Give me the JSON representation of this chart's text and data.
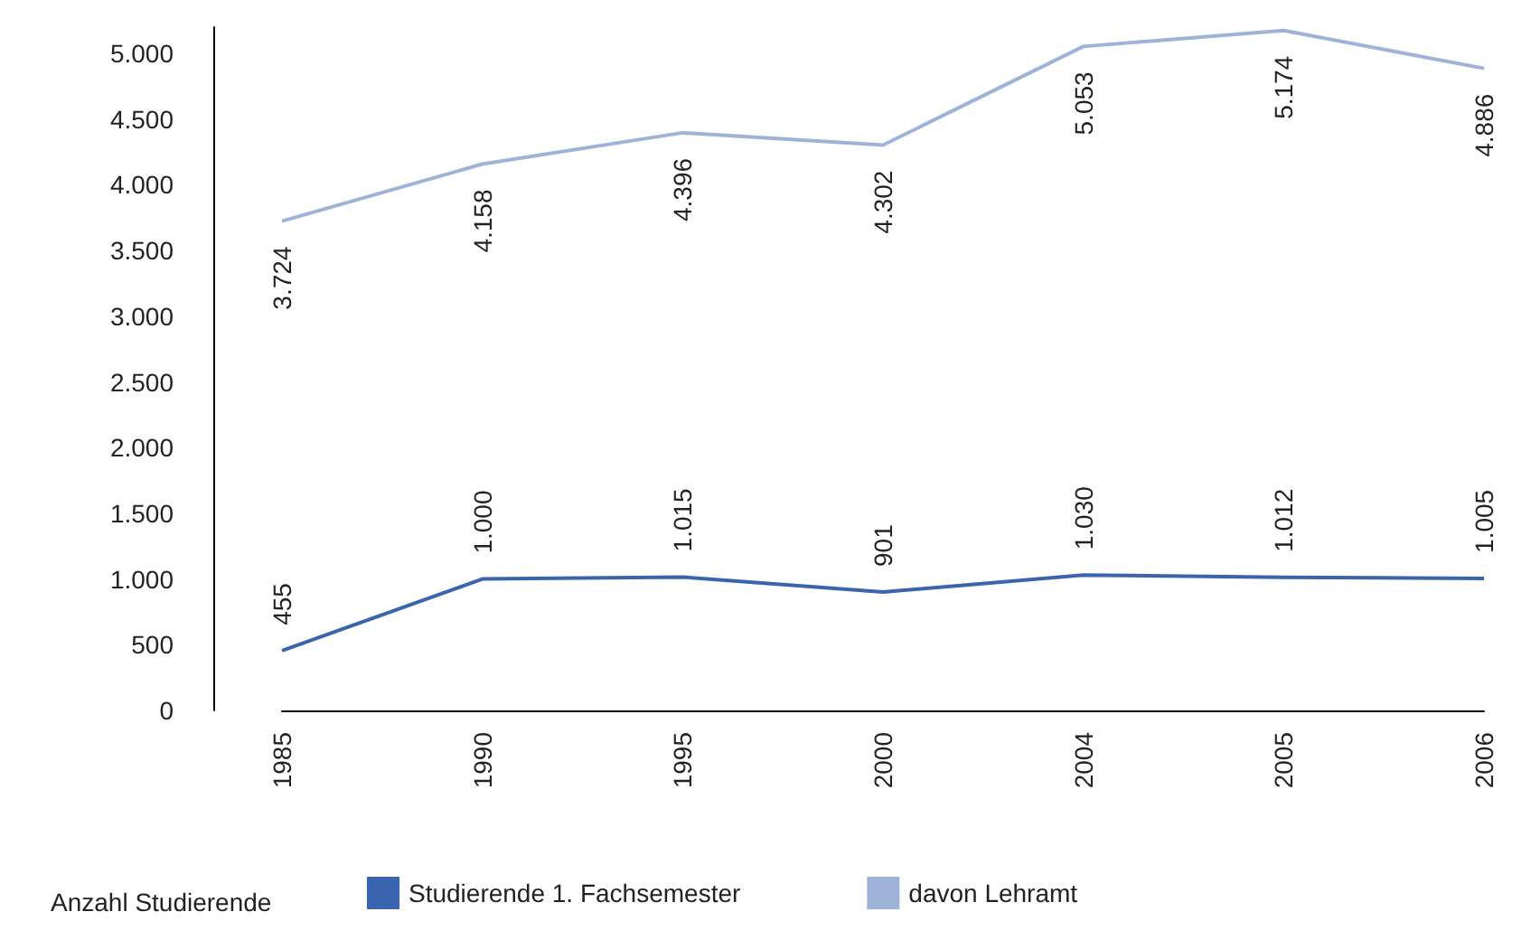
{
  "chart_data": {
    "type": "line",
    "legend_title": "Anzahl Studierende",
    "categories": [
      "1985",
      "1990",
      "1995",
      "2000",
      "2004",
      "2005",
      "2006"
    ],
    "series": [
      {
        "name": "Studierende 1. Fachsemester",
        "color": "#3a64ad",
        "values": [
          455,
          1000,
          1015,
          901,
          1030,
          1012,
          1005
        ],
        "value_labels": [
          "455",
          "1.000",
          "1.015",
          "901",
          "1.030",
          "1.012",
          "1.005"
        ]
      },
      {
        "name": "davon Lehramt",
        "color": "#9fb3d9",
        "values": [
          3724,
          4158,
          4396,
          4302,
          5053,
          5174,
          4886
        ],
        "value_labels": [
          "3.724",
          "4.158",
          "4.396",
          "4.302",
          "5.053",
          "5.174",
          "4.886"
        ]
      }
    ],
    "ylim": [
      0,
      5200
    ],
    "yticks": [
      {
        "value": 0,
        "label": "0"
      },
      {
        "value": 500,
        "label": "500"
      },
      {
        "value": 1000,
        "label": "1.000"
      },
      {
        "value": 1500,
        "label": "1.500"
      },
      {
        "value": 2000,
        "label": "2.000"
      },
      {
        "value": 2500,
        "label": "2.500"
      },
      {
        "value": 3000,
        "label": "3.000"
      },
      {
        "value": 3500,
        "label": "3.500"
      },
      {
        "value": 4000,
        "label": "4.000"
      },
      {
        "value": 4500,
        "label": "4.500"
      },
      {
        "value": 5000,
        "label": "5.000"
      }
    ],
    "grid": false,
    "legend": "bottom left"
  }
}
